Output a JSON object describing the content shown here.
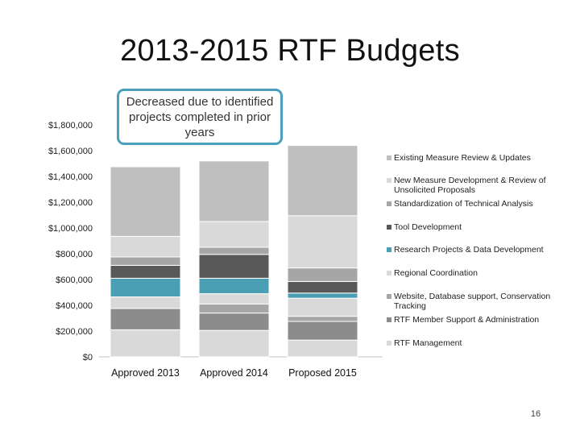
{
  "title": "2013-2015 RTF Budgets",
  "callout": "Decreased due to identified projects completed in prior years",
  "page_number": "16",
  "chart_data": {
    "type": "bar",
    "stacked": true,
    "categories": [
      "Approved 2013",
      "Approved 2014",
      "Proposed 2015"
    ],
    "ylim": [
      0,
      1800000
    ],
    "yticks": [
      0,
      200000,
      400000,
      600000,
      800000,
      1000000,
      1200000,
      1400000,
      1600000,
      1800000
    ],
    "ytick_labels": [
      "$0",
      "$200,000",
      "$400,000",
      "$600,000",
      "$800,000",
      "$1,000,000",
      "$1,200,000",
      "$1,400,000",
      "$1,600,000",
      "$1,800,000"
    ],
    "legend_position": "right",
    "series": [
      {
        "name": "RTF Management",
        "color": "#d9d9d9",
        "values": [
          210000,
          205000,
          130000
        ]
      },
      {
        "name": "RTF Member Support & Administration",
        "color": "#8c8c8c",
        "values": [
          165000,
          135000,
          145000
        ]
      },
      {
        "name": "Website, Database support, Conservation Tracking",
        "color": "#a6a6a6",
        "values": [
          0,
          70000,
          40000
        ]
      },
      {
        "name": "Regional Coordination",
        "color": "#d9d9d9",
        "values": [
          90000,
          80000,
          140000
        ]
      },
      {
        "name": "Research Projects & Data Development",
        "color": "#4a9fb5",
        "values": [
          145000,
          120000,
          40000
        ]
      },
      {
        "name": "Tool Development",
        "color": "#595959",
        "values": [
          100000,
          185000,
          90000
        ]
      },
      {
        "name": "Standardization of Technical Analysis",
        "color": "#a6a6a6",
        "values": [
          65000,
          55000,
          105000
        ]
      },
      {
        "name": "New Measure Development & Review of Unsolicited Proposals",
        "color": "#d9d9d9",
        "values": [
          160000,
          200000,
          405000
        ]
      },
      {
        "name": "Existing Measure Review & Updates",
        "color": "#bfbfbf",
        "values": [
          540000,
          470000,
          545000
        ]
      }
    ],
    "legend_order": [
      "Existing Measure Review & Updates",
      "New Measure Development & Review of Unsolicited Proposals",
      "Standardization of Technical Analysis",
      "Tool Development",
      "Research Projects & Data Development",
      "Regional Coordination",
      "Website, Database support, Conservation Tracking",
      "RTF Member Support & Administration",
      "RTF Management"
    ]
  }
}
